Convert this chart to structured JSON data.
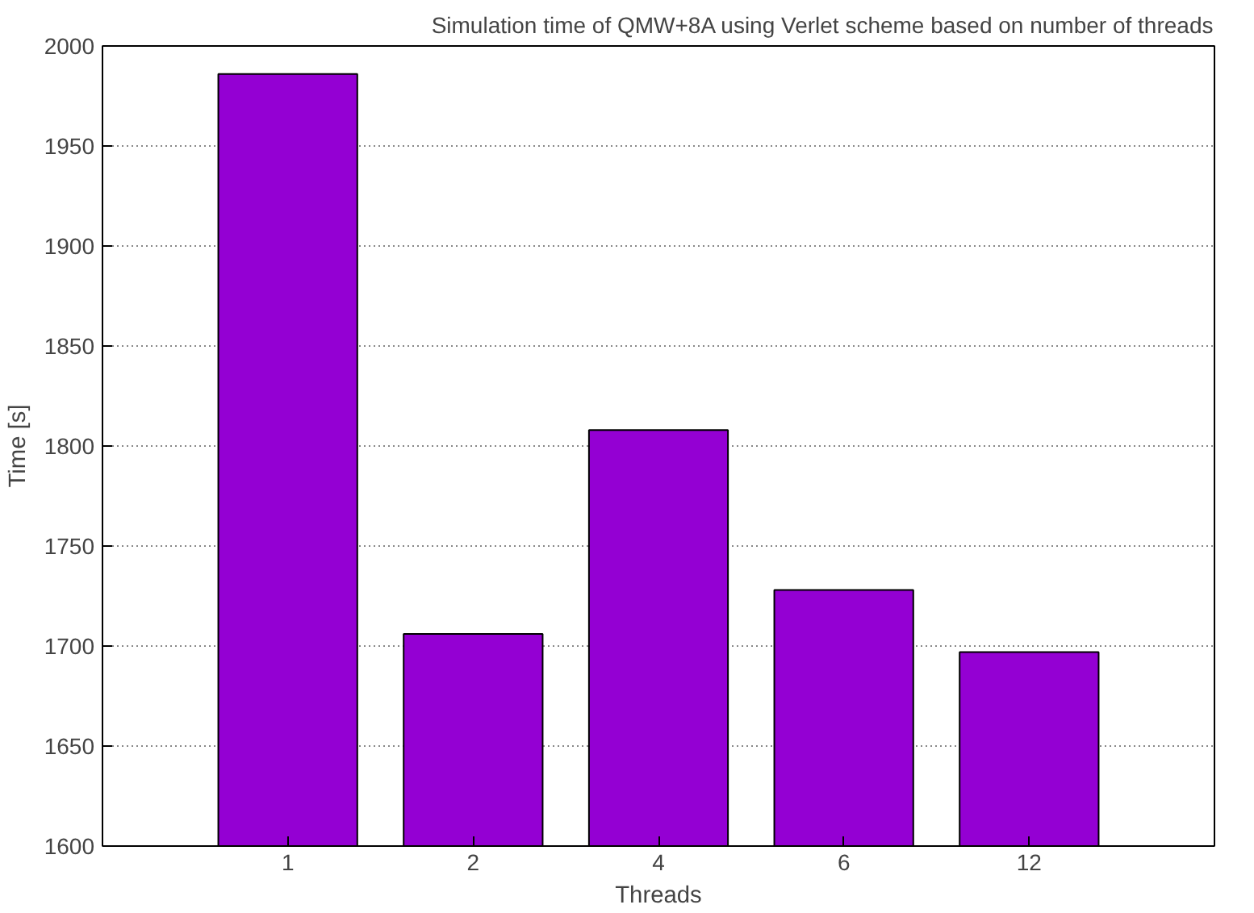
{
  "chart_data": {
    "type": "bar",
    "title": "Simulation time of QMW+8A using Verlet scheme based on number of threads",
    "xlabel": "Threads",
    "ylabel": "Time [s]",
    "categories": [
      "1",
      "2",
      "4",
      "6",
      "12"
    ],
    "values": [
      1986,
      1706,
      1808,
      1728,
      1697
    ],
    "color": "#9400d3",
    "ylim": [
      1600,
      2000
    ],
    "yticks": [
      1600,
      1650,
      1700,
      1750,
      1800,
      1850,
      1900,
      1950,
      2000
    ],
    "grid": "y"
  }
}
